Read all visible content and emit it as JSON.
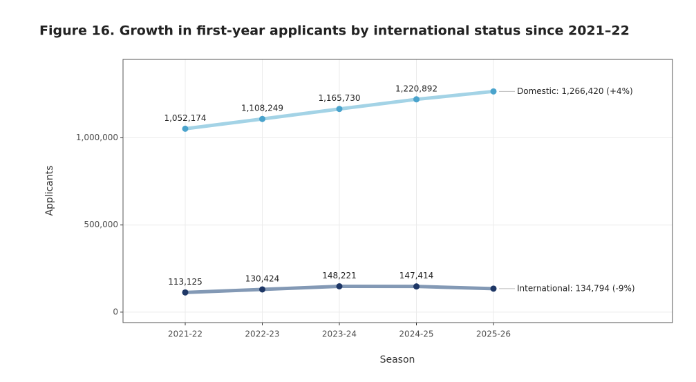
{
  "chart_data": {
    "type": "line",
    "title": "Figure 16. Growth in first-year applicants by international status since 2021–22",
    "xlabel": "Season",
    "ylabel": "Applicants",
    "categories": [
      "2021-22",
      "2022-23",
      "2023-24",
      "2024-25",
      "2025-26"
    ],
    "series": [
      {
        "name": "Domestic",
        "color": "#a3d3e6",
        "point_color": "#4aa3cc",
        "values": [
          1052174,
          1108249,
          1165730,
          1220892,
          1266420
        ],
        "value_labels": [
          "1,052,174",
          "1,108,249",
          "1,165,730",
          "1,220,892",
          null
        ],
        "end_label": "Domestic: 1,266,420 (+4%)"
      },
      {
        "name": "International",
        "color": "#8399b5",
        "point_color": "#1e3766",
        "values": [
          113125,
          130424,
          148221,
          147414,
          134794
        ],
        "value_labels": [
          "113,125",
          "130,424",
          "148,221",
          "147,414",
          null
        ],
        "end_label": "International: 134,794 (-9%)"
      }
    ],
    "ylim": [
      -60000,
      1450000
    ],
    "yticks": [
      0,
      {
        "value": 500000,
        "label": "500,000"
      },
      {
        "value": 1000000,
        "label": "1,000,000"
      }
    ],
    "grid": true
  }
}
